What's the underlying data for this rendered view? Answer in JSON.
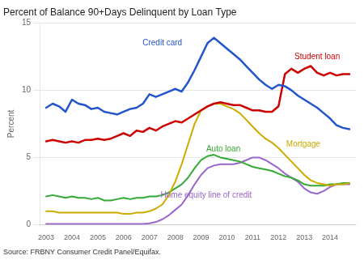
{
  "chart_data": {
    "type": "line",
    "title": "Percent of Balance 90+Days Delinquent by Loan Type",
    "y_label": "Percent",
    "source": "Source: FRBNY Consumer Credit Panel/Equifax.",
    "x": [
      2003.0,
      2003.25,
      2003.5,
      2003.75,
      2004.0,
      2004.25,
      2004.5,
      2004.75,
      2005.0,
      2005.25,
      2005.5,
      2005.75,
      2006.0,
      2006.25,
      2006.5,
      2006.75,
      2007.0,
      2007.25,
      2007.5,
      2007.75,
      2008.0,
      2008.25,
      2008.5,
      2008.75,
      2009.0,
      2009.25,
      2009.5,
      2009.75,
      2010.0,
      2010.25,
      2010.5,
      2010.75,
      2011.0,
      2011.25,
      2011.5,
      2011.75,
      2012.0,
      2012.25,
      2012.5,
      2012.75,
      2013.0,
      2013.25,
      2013.5,
      2013.75,
      2014.0,
      2014.25,
      2014.5,
      2014.75
    ],
    "series": [
      {
        "name": "Credit card",
        "color": "#2255cc",
        "values": [
          8.7,
          9.0,
          8.8,
          8.4,
          9.3,
          9.0,
          8.9,
          8.6,
          8.7,
          8.4,
          8.3,
          8.2,
          8.4,
          8.6,
          8.7,
          9.0,
          9.7,
          9.5,
          9.7,
          9.9,
          10.1,
          9.9,
          10.6,
          11.5,
          12.5,
          13.5,
          13.9,
          13.5,
          13.1,
          12.7,
          12.3,
          11.8,
          11.3,
          10.8,
          10.4,
          10.1,
          10.4,
          10.3,
          10.0,
          9.6,
          9.3,
          9.0,
          8.7,
          8.3,
          7.9,
          7.4,
          7.2,
          7.1
        ]
      },
      {
        "name": "Student loan",
        "color": "#cc0000",
        "values": [
          6.2,
          6.3,
          6.2,
          6.1,
          6.2,
          6.1,
          6.3,
          6.3,
          6.4,
          6.3,
          6.4,
          6.6,
          6.8,
          6.6,
          7.0,
          6.9,
          7.2,
          7.0,
          7.3,
          7.5,
          7.7,
          7.6,
          7.9,
          8.2,
          8.5,
          8.8,
          9.0,
          9.1,
          9.0,
          8.9,
          8.9,
          8.7,
          8.5,
          8.5,
          8.4,
          8.4,
          8.8,
          11.2,
          11.6,
          11.3,
          11.6,
          11.8,
          11.3,
          11.1,
          11.3,
          11.1,
          11.2,
          11.2
        ]
      },
      {
        "name": "Mortgage",
        "color": "#ccaa00",
        "values": [
          1.0,
          1.0,
          0.9,
          0.9,
          0.9,
          0.9,
          0.9,
          0.9,
          0.9,
          0.9,
          0.9,
          0.9,
          0.8,
          0.8,
          0.9,
          0.9,
          1.0,
          1.2,
          1.5,
          2.2,
          3.2,
          4.5,
          6.0,
          7.5,
          8.5,
          8.8,
          9.0,
          9.0,
          8.8,
          8.6,
          8.3,
          7.8,
          7.3,
          6.8,
          6.4,
          6.1,
          5.7,
          5.2,
          4.7,
          4.2,
          3.7,
          3.3,
          3.1,
          3.0,
          2.9,
          3.0,
          3.0,
          3.1
        ]
      },
      {
        "name": "Auto loan",
        "color": "#33aa33",
        "values": [
          2.1,
          2.2,
          2.1,
          2.0,
          2.1,
          2.0,
          2.0,
          1.9,
          2.0,
          1.8,
          1.8,
          1.9,
          2.0,
          1.9,
          2.0,
          2.0,
          2.1,
          2.1,
          2.2,
          2.4,
          2.7,
          3.0,
          3.5,
          4.2,
          4.8,
          5.1,
          5.2,
          5.0,
          4.9,
          4.8,
          4.7,
          4.5,
          4.3,
          4.2,
          4.1,
          4.0,
          3.8,
          3.6,
          3.5,
          3.3,
          3.0,
          2.9,
          2.9,
          2.9,
          3.0,
          3.0,
          3.1,
          3.1
        ]
      },
      {
        "name": "Home equity line of credit",
        "color": "#9966cc",
        "values": [
          0.05,
          0.05,
          0.05,
          0.05,
          0.05,
          0.05,
          0.05,
          0.05,
          0.05,
          0.05,
          0.05,
          0.05,
          0.05,
          0.05,
          0.05,
          0.05,
          0.1,
          0.2,
          0.4,
          0.7,
          1.1,
          1.5,
          2.2,
          3.0,
          3.7,
          4.2,
          4.4,
          4.5,
          4.5,
          4.5,
          4.6,
          4.8,
          5.0,
          5.0,
          4.8,
          4.5,
          4.2,
          3.8,
          3.5,
          3.2,
          2.7,
          2.4,
          2.3,
          2.5,
          2.8,
          3.0,
          3.0,
          3.0
        ]
      }
    ],
    "annotations": [
      {
        "text": "Credit card",
        "x": 2007.5,
        "y": 13.5,
        "color": "#2255cc",
        "align": "center"
      },
      {
        "text": "Student loan",
        "x": 2013.5,
        "y": 12.5,
        "color": "#cc0000",
        "align": "center"
      },
      {
        "text": "Mortgage",
        "x": 2012.3,
        "y": 6.0,
        "color": "#ccaa00",
        "align": "left"
      },
      {
        "text": "Auto loan",
        "x": 2009.2,
        "y": 5.6,
        "color": "#33aa33",
        "align": "left"
      },
      {
        "text": "Home equity line of credit",
        "x": 2009.2,
        "y": 2.2,
        "color": "#9966cc",
        "align": "center"
      }
    ],
    "xlim": [
      2002.75,
      2015.0
    ],
    "xticks": [
      2003,
      2004,
      2005,
      2006,
      2007,
      2008,
      2009,
      2010,
      2011,
      2012,
      2013,
      2014
    ],
    "ylim": [
      0,
      15
    ],
    "yticks": [
      0,
      5,
      10,
      15
    ],
    "grid": "y",
    "marker": "none"
  }
}
